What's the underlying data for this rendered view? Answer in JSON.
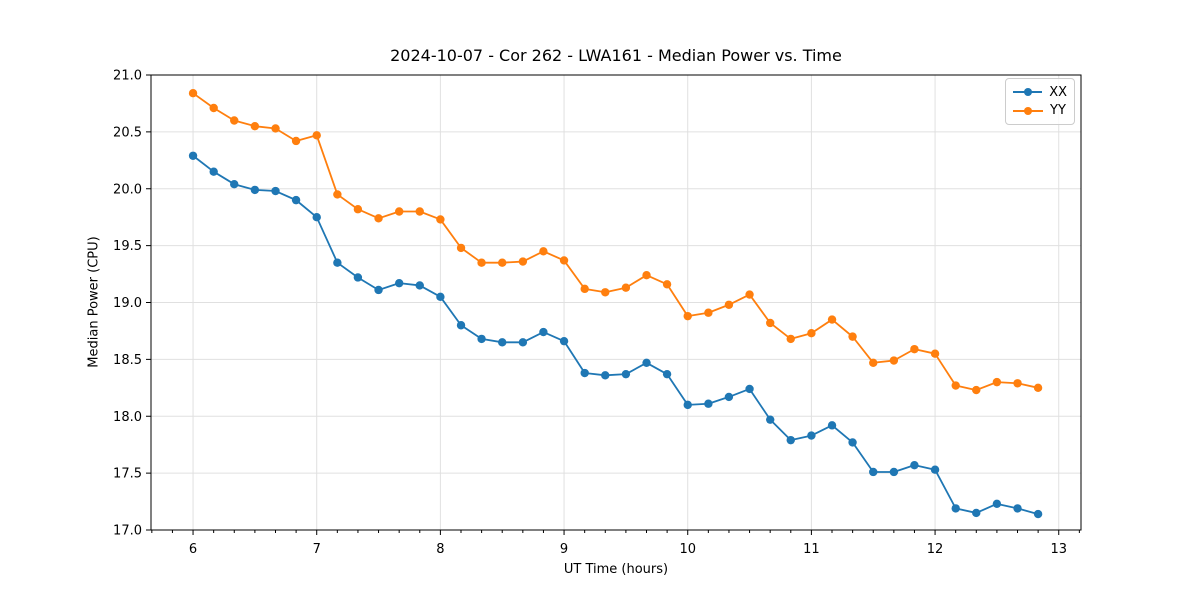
{
  "chart_data": {
    "type": "line",
    "title": "2024-10-07 - Cor 262 - LWA161 - Median Power vs. Time",
    "xlabel": "UT Time (hours)",
    "ylabel": "Median Power (CPU)",
    "xlim": [
      5.66,
      13.18
    ],
    "ylim": [
      17.0,
      21.0
    ],
    "xticks": [
      6,
      7,
      8,
      9,
      10,
      11,
      12,
      13
    ],
    "xtick_labels": [
      "6",
      "7",
      "8",
      "9",
      "10",
      "11",
      "12",
      "13"
    ],
    "yticks": [
      17.0,
      17.5,
      18.0,
      18.5,
      19.0,
      19.5,
      20.0,
      20.5,
      21.0
    ],
    "ytick_labels": [
      "17.0",
      "17.5",
      "18.0",
      "18.5",
      "19.0",
      "19.5",
      "20.0",
      "20.5",
      "21.0"
    ],
    "x_minor_tick_step_hours": 0.16667,
    "grid": true,
    "grid_color": "#e0e0e0",
    "axes_color": "#000000",
    "background": "#ffffff",
    "legend": {
      "position": "upper right",
      "entries": [
        "XX",
        "YY"
      ]
    },
    "x": [
      6.0,
      6.167,
      6.333,
      6.5,
      6.667,
      6.833,
      7.0,
      7.167,
      7.333,
      7.5,
      7.667,
      7.833,
      8.0,
      8.167,
      8.333,
      8.5,
      8.667,
      8.833,
      9.0,
      9.167,
      9.333,
      9.5,
      9.667,
      9.833,
      10.0,
      10.167,
      10.333,
      10.5,
      10.667,
      10.833,
      11.0,
      11.167,
      11.333,
      11.5,
      11.667,
      11.833,
      12.0,
      12.167,
      12.333,
      12.5,
      12.667,
      12.833
    ],
    "series": [
      {
        "name": "XX",
        "color": "#1f77b4",
        "values": [
          20.29,
          20.15,
          20.04,
          19.99,
          19.98,
          19.9,
          19.75,
          19.35,
          19.22,
          19.11,
          19.17,
          19.15,
          19.05,
          18.8,
          18.68,
          18.65,
          18.65,
          18.74,
          18.66,
          18.38,
          18.36,
          18.37,
          18.47,
          18.37,
          18.1,
          18.11,
          18.17,
          18.24,
          17.97,
          17.79,
          17.83,
          17.92,
          17.77,
          17.51,
          17.51,
          17.57,
          17.53,
          17.19,
          17.15,
          17.23,
          17.19,
          17.14
        ]
      },
      {
        "name": "YY",
        "color": "#ff7f0e",
        "values": [
          20.84,
          20.71,
          20.6,
          20.55,
          20.53,
          20.42,
          20.47,
          19.95,
          19.82,
          19.74,
          19.8,
          19.8,
          19.73,
          19.48,
          19.35,
          19.35,
          19.36,
          19.45,
          19.37,
          19.12,
          19.09,
          19.13,
          19.24,
          19.16,
          18.88,
          18.91,
          18.98,
          19.07,
          18.82,
          18.68,
          18.73,
          18.85,
          18.7,
          18.47,
          18.49,
          18.59,
          18.55,
          18.27,
          18.23,
          18.3,
          18.29,
          18.25
        ]
      }
    ]
  }
}
